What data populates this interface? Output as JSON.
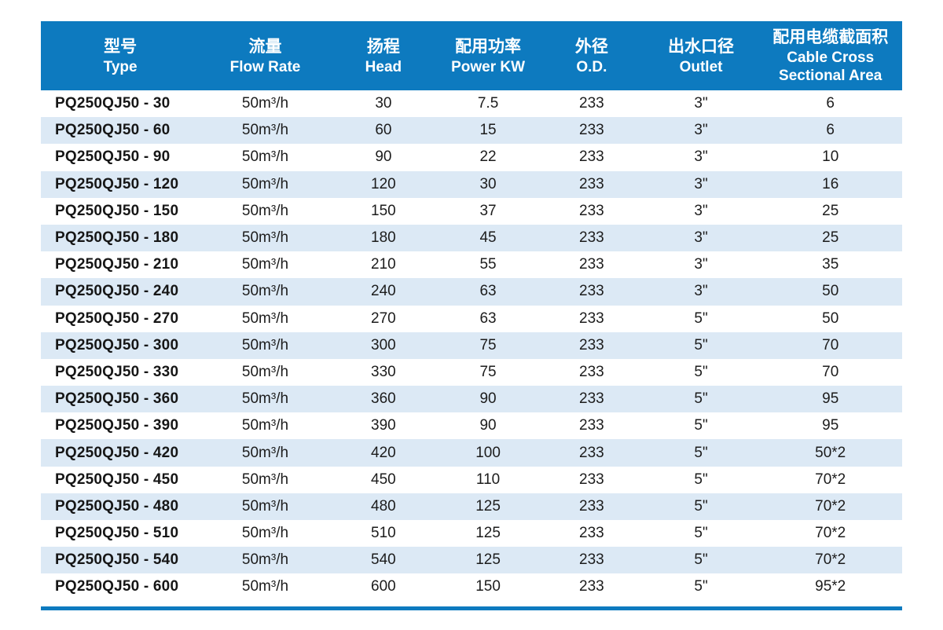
{
  "colors": {
    "header_bg": "#0d7abf",
    "row_alt_bg": "#dce9f5",
    "bottom_bar": "#0d7abf",
    "header_text": "#ffffff",
    "body_text": "#1c1c1c"
  },
  "table": {
    "columns": [
      {
        "id": "type",
        "zh": "型号",
        "en_lines": [
          "Type"
        ]
      },
      {
        "id": "flow-rate",
        "zh": "流量",
        "en_lines": [
          "Flow Rate"
        ]
      },
      {
        "id": "head",
        "zh": "扬程",
        "en_lines": [
          "Head"
        ]
      },
      {
        "id": "power-kw",
        "zh": "配用功率",
        "en_lines": [
          "Power KW"
        ]
      },
      {
        "id": "od",
        "zh": "外径",
        "en_lines": [
          "O.D."
        ]
      },
      {
        "id": "outlet",
        "zh": "出水口径",
        "en_lines": [
          "Outlet"
        ]
      },
      {
        "id": "cable",
        "zh": "配用电缆截面积",
        "en_lines": [
          "Cable Cross",
          "Sectional Area"
        ]
      }
    ],
    "rows": [
      [
        "PQ250QJ50 - 30",
        "50m³/h",
        "30",
        "7.5",
        "233",
        "3\"",
        "6"
      ],
      [
        "PQ250QJ50 - 60",
        "50m³/h",
        "60",
        "15",
        "233",
        "3\"",
        "6"
      ],
      [
        "PQ250QJ50 - 90",
        "50m³/h",
        "90",
        "22",
        "233",
        "3\"",
        "10"
      ],
      [
        "PQ250QJ50 - 120",
        "50m³/h",
        "120",
        "30",
        "233",
        "3\"",
        "16"
      ],
      [
        "PQ250QJ50 - 150",
        "50m³/h",
        "150",
        "37",
        "233",
        "3\"",
        "25"
      ],
      [
        "PQ250QJ50 - 180",
        "50m³/h",
        "180",
        "45",
        "233",
        "3\"",
        "25"
      ],
      [
        "PQ250QJ50 - 210",
        "50m³/h",
        "210",
        "55",
        "233",
        "3\"",
        "35"
      ],
      [
        "PQ250QJ50 - 240",
        "50m³/h",
        "240",
        "63",
        "233",
        "3\"",
        "50"
      ],
      [
        "PQ250QJ50 - 270",
        "50m³/h",
        "270",
        "63",
        "233",
        "5\"",
        "50"
      ],
      [
        "PQ250QJ50 - 300",
        "50m³/h",
        "300",
        "75",
        "233",
        "5\"",
        "70"
      ],
      [
        "PQ250QJ50 - 330",
        "50m³/h",
        "330",
        "75",
        "233",
        "5\"",
        "70"
      ],
      [
        "PQ250QJ50 - 360",
        "50m³/h",
        "360",
        "90",
        "233",
        "5\"",
        "95"
      ],
      [
        "PQ250QJ50 - 390",
        "50m³/h",
        "390",
        "90",
        "233",
        "5\"",
        "95"
      ],
      [
        "PQ250QJ50 - 420",
        "50m³/h",
        "420",
        "100",
        "233",
        "5\"",
        "50*2"
      ],
      [
        "PQ250QJ50 - 450",
        "50m³/h",
        "450",
        "110",
        "233",
        "5\"",
        "70*2"
      ],
      [
        "PQ250QJ50 - 480",
        "50m³/h",
        "480",
        "125",
        "233",
        "5\"",
        "70*2"
      ],
      [
        "PQ250QJ50 - 510",
        "50m³/h",
        "510",
        "125",
        "233",
        "5\"",
        "70*2"
      ],
      [
        "PQ250QJ50 - 540",
        "50m³/h",
        "540",
        "125",
        "233",
        "5\"",
        "70*2"
      ],
      [
        "PQ250QJ50 - 600",
        "50m³/h",
        "600",
        "150",
        "233",
        "5\"",
        "95*2"
      ]
    ]
  }
}
